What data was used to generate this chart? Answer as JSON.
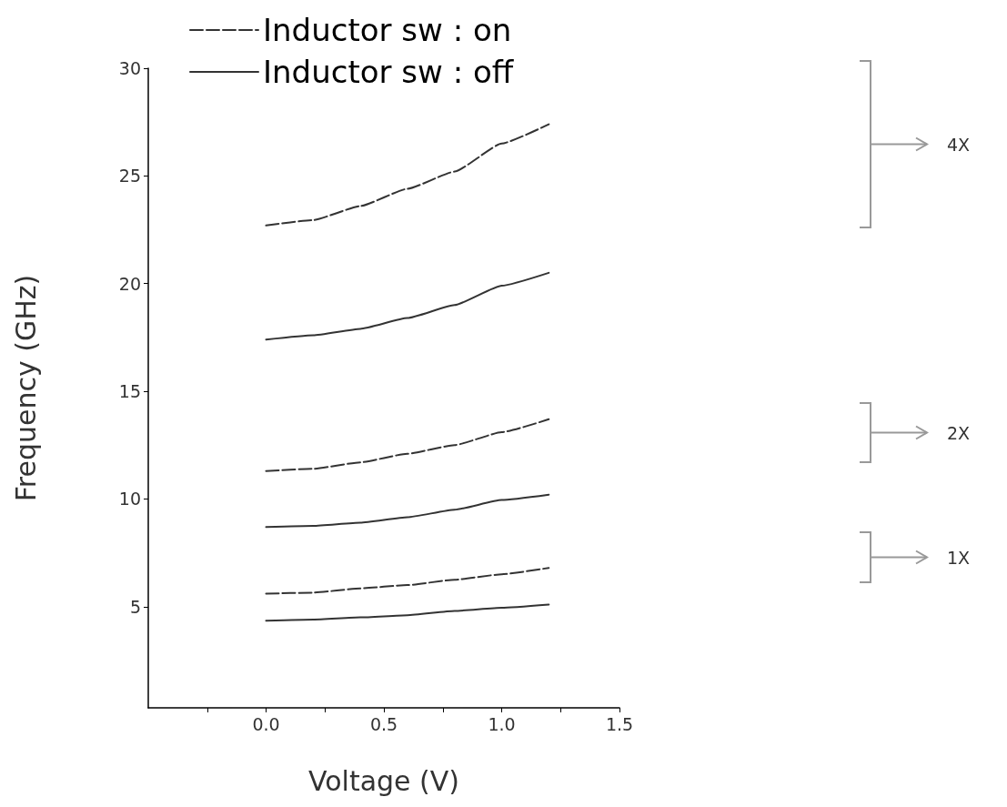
{
  "chart_data": {
    "type": "line",
    "xlabel": "Voltage (V)",
    "ylabel": "Frequency (GHz)",
    "x": [
      0,
      0.2,
      0.4,
      0.6,
      0.8,
      1.0,
      1.2
    ],
    "series": [
      {
        "name": "Inductor sw : on",
        "color": "#333333",
        "line_style": "dashed",
        "values": [
          22.7,
          22.95,
          23.6,
          24.4,
          25.2,
          26.5,
          27.4
        ]
      },
      {
        "name": "Inductor sw : off",
        "color": "#333333",
        "line_style": "solid",
        "values": [
          17.4,
          17.6,
          17.9,
          18.4,
          19.0,
          19.9,
          20.5
        ]
      },
      {
        "color": "#333333",
        "line_style": "dashed",
        "values": [
          11.3,
          11.4,
          11.7,
          12.1,
          12.5,
          13.1,
          13.7
        ]
      },
      {
        "color": "#333333",
        "line_style": "solid",
        "values": [
          8.7,
          8.75,
          8.9,
          9.15,
          9.5,
          9.95,
          10.2
        ]
      },
      {
        "color": "#333333",
        "line_style": "dashed",
        "values": [
          5.6,
          5.65,
          5.85,
          6.0,
          6.25,
          6.5,
          6.8
        ]
      },
      {
        "color": "#333333",
        "line_style": "solid",
        "values": [
          4.35,
          4.4,
          4.5,
          4.6,
          4.8,
          4.95,
          5.1
        ]
      }
    ],
    "xlim": [
      -0.5,
      1.5
    ],
    "xticks": [
      {
        "value": -0.25,
        "label": null
      },
      {
        "value": 0,
        "label": "0.0"
      },
      {
        "value": 0.25,
        "label": null
      },
      0.5,
      {
        "value": 0.75,
        "label": null
      },
      {
        "value": 1,
        "label": "1.0"
      },
      {
        "value": 1.25,
        "label": null
      },
      1.5
    ],
    "ylim": [
      0.3,
      30
    ],
    "yticks": [
      5,
      10,
      15,
      20,
      25,
      30
    ],
    "annotations": [
      "4X",
      "2X",
      "1X"
    ],
    "legend": "top left",
    "marker": "none",
    "grid": false
  }
}
